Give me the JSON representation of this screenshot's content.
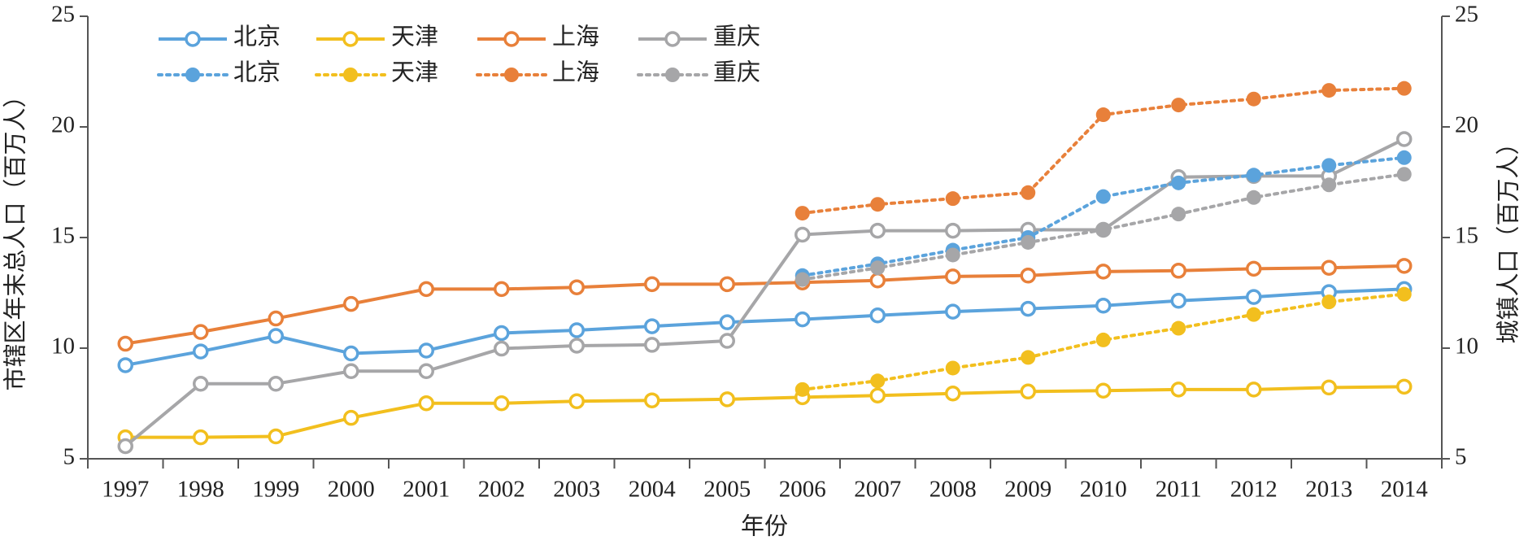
{
  "chart_data": {
    "type": "line",
    "xlabel": "年份",
    "ylabel": "市辖区年末总人口（百万人）",
    "y2label": "城镇人口（百万人）",
    "categories": [
      "1997",
      "1998",
      "1999",
      "2000",
      "2001",
      "2002",
      "2003",
      "2004",
      "2005",
      "2006",
      "2007",
      "2008",
      "2009",
      "2010",
      "2011",
      "2012",
      "2013",
      "2014"
    ],
    "ylim": [
      5,
      25
    ],
    "yticks": [
      5,
      10,
      15,
      20,
      25
    ],
    "y2lim": [
      5,
      25
    ],
    "y2ticks": [
      5,
      10,
      15,
      20,
      25
    ],
    "series": [
      {
        "name": "北京",
        "color": "#5ba3dc",
        "values": [
          9.23,
          9.85,
          10.55,
          9.76,
          9.89,
          10.68,
          10.81,
          10.99,
          11.17,
          11.3,
          11.48,
          11.65,
          11.78,
          11.92,
          12.14,
          12.31,
          12.53,
          12.67
        ]
      },
      {
        "name": "天津",
        "color": "#f2bf1e",
        "values": [
          5.97,
          5.97,
          6.01,
          6.85,
          7.51,
          7.51,
          7.6,
          7.64,
          7.69,
          7.78,
          7.86,
          7.95,
          8.04,
          8.08,
          8.13,
          8.13,
          8.22,
          8.26
        ]
      },
      {
        "name": "上海",
        "color": "#e8803a",
        "values": [
          10.2,
          10.73,
          11.34,
          12.0,
          12.67,
          12.67,
          12.75,
          12.89,
          12.89,
          12.97,
          13.06,
          13.24,
          13.28,
          13.46,
          13.5,
          13.59,
          13.63,
          13.72
        ]
      },
      {
        "name": "重庆",
        "color": "#a6a6a8",
        "values": [
          5.57,
          8.39,
          8.39,
          8.96,
          8.96,
          9.98,
          10.11,
          10.15,
          10.33,
          15.13,
          15.31,
          15.31,
          15.35,
          15.35,
          17.73,
          17.78,
          17.78,
          19.45
        ]
      },
      {
        "name": "北京",
        "color": "#5ba3dc",
        "axis": "y2",
        "values": [
          null,
          null,
          null,
          null,
          null,
          null,
          null,
          null,
          null,
          13.28,
          13.81,
          14.43,
          15.0,
          16.85,
          17.47,
          17.82,
          18.26,
          18.61
        ]
      },
      {
        "name": "天津",
        "color": "#f2bf1e",
        "axis": "y2",
        "values": [
          null,
          null,
          null,
          null,
          null,
          null,
          null,
          null,
          null,
          8.13,
          8.52,
          9.1,
          9.58,
          10.37,
          10.9,
          11.52,
          12.09,
          12.44
        ]
      },
      {
        "name": "上海",
        "color": "#e8803a",
        "axis": "y2",
        "values": [
          null,
          null,
          null,
          null,
          null,
          null,
          null,
          null,
          null,
          16.1,
          16.5,
          16.76,
          17.03,
          20.55,
          20.99,
          21.26,
          21.65,
          21.74
        ]
      },
      {
        "name": "重庆",
        "color": "#a6a6a8",
        "axis": "y2",
        "values": [
          null,
          null,
          null,
          null,
          null,
          null,
          null,
          null,
          null,
          13.1,
          13.63,
          14.21,
          14.78,
          15.35,
          16.06,
          16.81,
          17.38,
          17.86
        ]
      }
    ]
  }
}
